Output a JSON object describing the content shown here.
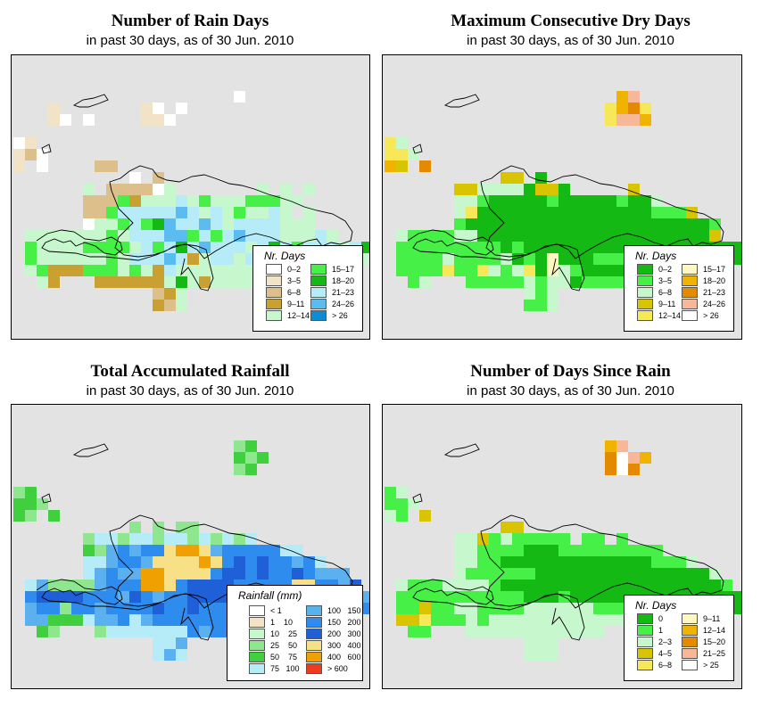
{
  "colors": {
    "map_background": "#e3e3e3",
    "island_outline": "#000000"
  },
  "panels": [
    {
      "id": "rain-days",
      "title": "Number of Rain Days",
      "subtitle": "in past 30 days, as of  30 Jun. 2010",
      "legend": {
        "title": "Nr. Days",
        "items": [
          {
            "label": "0–2",
            "color": "#ffffff"
          },
          {
            "label": "3–5",
            "color": "#f2e3c6"
          },
          {
            "label": "6–8",
            "color": "#ddbf8c"
          },
          {
            "label": "9–11",
            "color": "#c9a032"
          },
          {
            "label": "12–14",
            "color": "#c7f7cc"
          },
          {
            "label": "15–17",
            "color": "#46f046"
          },
          {
            "label": "18–20",
            "color": "#14b914"
          },
          {
            "label": "21–23",
            "color": "#b6ecf7"
          },
          {
            "label": "24–26",
            "color": "#5bbcf0"
          },
          {
            "label": "> 26",
            "color": "#0e8bd3"
          }
        ]
      },
      "grid": [
        "...........................................",
        "...........................................",
        "...................A...........................",
        "...B.......BA.A................................",
        "...BA.A....BBA.................................",
        "...............................................",
        "AB.............................................",
        "BCA............................................",
        "B.A....CC.......................................",
        "..........A.C...................................",
        "......E.CCCCAE.......E.E.E.........",
        "......CCCFDEEEHEFEEEFFFEE...........",
        "......CCFHHHHHIHEHEFEEHE.E........",
        "......AEEFHFGIHHIHEHHHHEEE........",
        ".EEEEEEEFEHHHIIFHFHIHHHEEEHE.....",
        ".FEEEEFFFFEHFHGHIHHHEHGHFHHHEHGEE..",
        ".FEEEEEEFEHHHIHDEHHEHEDHEFGEGHEE...",
        ".EFDDDFFFEFEDHEEEEEEEEEEE.........",
        "..ED...DDDDDDEGEDEEEE..............",
        "............CDE.......................",
        "............DCE.......................",
        "..............................................."
      ]
    },
    {
      "id": "dry-days",
      "title": "Maximum Consecutive Dry Days",
      "subtitle": "in past 30 days, as of  30 Jun. 2010",
      "legend": {
        "title": "Nr. Days",
        "items": [
          {
            "label": "0–2",
            "color": "#14b914"
          },
          {
            "label": "3–5",
            "color": "#46f046"
          },
          {
            "label": "6–8",
            "color": "#c7f7cc"
          },
          {
            "label": "9–11",
            "color": "#d8c400"
          },
          {
            "label": "12–14",
            "color": "#f7e85a"
          },
          {
            "label": "15–17",
            "color": "#fff7c0"
          },
          {
            "label": "18–20",
            "color": "#f0b400"
          },
          {
            "label": "21–23",
            "color": "#e38a00"
          },
          {
            "label": "24–26",
            "color": "#f7b89a"
          },
          {
            "label": "> 26",
            "color": "#ffffff"
          }
        ]
      },
      "grid": [
        "...........................................",
        "...................................................",
        "....................GI.............",
        "...................EGHE.......................",
        "...................EIIG.......................",
        "..........................................",
        "EC..........................................",
        "EEC.......................................",
        "GD.H.......................................",
        "..........DD.A.......................",
        "......DDCCCCADDA.....D.......",
        "......CCBAAAAABAAAAABAAC.............",
        "......CEAAAAAAAAAAAAAAABBBD.........",
        "......BAAAAAAAAAAAAAAAAAAAAAB..........",
        ".CBBBBCCAAAAAAAAAAAAAAAAAAAAD.......",
        ".BBBBBBBBBABAAAAAAAAAAAAAAAAAAAAD..",
        ".BBBBCBBBBCABAFAAABBBABBBAABAAADB...",
        ".BBBBEBBECBCEAFCBAAAABBBBDAB.......",
        "..BC...BBBBBCBCCABBBBB...........",
        "............CBC.....................",
        "............BBC......................",
        "......................................"
      ]
    },
    {
      "id": "rainfall",
      "title": "Total Accumulated Rainfall",
      "subtitle": "in past 30 days, as of  30 Jun. 2010",
      "legend": {
        "title": "Rainfall (mm)",
        "items": [
          {
            "label": "< 1",
            "color": "#ffffff"
          },
          {
            "label": "1    10",
            "color": "#f2e3c6"
          },
          {
            "label": "10    25",
            "color": "#c7f7cc"
          },
          {
            "label": "25    50",
            "color": "#8ee68e"
          },
          {
            "label": "50    75",
            "color": "#3fcf3f"
          },
          {
            "label": "75   100",
            "color": "#b6ecf7"
          },
          {
            "label": "100   150",
            "color": "#5bb0f0"
          },
          {
            "label": "150   200",
            "color": "#2d8cee"
          },
          {
            "label": "200   300",
            "color": "#1f5fd8"
          },
          {
            "label": "300   400",
            "color": "#f7e085"
          },
          {
            "label": "400   600",
            "color": "#f0a000"
          },
          {
            "label": "> 600",
            "color": "#f03a1e"
          }
        ]
      },
      "grid": [
        "...........................................",
        "...................................................",
        "...................DE........................",
        "...................EDE.......................",
        "...................DE........................",
        "..........................................",
        "DE..........................................",
        "EED.......................................",
        "ED.E.......................................",
        "..........D.D.DD......................",
        "......DFFDFFDFFDFDFDF...........",
        "......EDGHGHHJKKJGHHHHHFF...........",
        "......FFGHHGJJJJKJHIHIHHGHF........",
        "......FGHGGKKJJJJHIIHIHHIHGGG......",
        ".FGDDDDGHHHKKJHIIIIHHHHHJJHHGI.....",
        ".HIIIIHHHGIHGHHIIIIIHHHIJKHHIHGHH..",
        ".GHHDHHGHHHHIHHIHHHHHHHIHHHHHHHH...",
        ".GGEEEFGGHFGHHHHHHHHHHGHGH.........",
        "..ED...DFFFFFFFHGHHHF..........",
        "............FFG......................",
        "............FGF.....................",
        "......................................"
      ]
    },
    {
      "id": "since-rain",
      "title": "Number of Days Since Rain",
      "subtitle": "in past 30 days, as of  30 Jun. 2010",
      "legend": {
        "title": "Nr. Days",
        "items": [
          {
            "label": "0",
            "color": "#14b914"
          },
          {
            "label": "1",
            "color": "#46f046"
          },
          {
            "label": "2–3",
            "color": "#c7f7cc"
          },
          {
            "label": "4–5",
            "color": "#d8c400"
          },
          {
            "label": "6–8",
            "color": "#f7e85a"
          },
          {
            "label": "9–11",
            "color": "#fff7c0"
          },
          {
            "label": "12–14",
            "color": "#f0b400"
          },
          {
            "label": "15–20",
            "color": "#e38a00"
          },
          {
            "label": "21–25",
            "color": "#f7b89a"
          },
          {
            "label": "> 25",
            "color": "#ffffff"
          }
        ]
      },
      "grid": [
        "...........................................",
        "...................................................",
        "...................GI.......................",
        "...................HJIG.......................",
        "...................HJH........................",
        "..........................................",
        "BC..........................................",
        "BBC.......................................",
        "CB.D.......................................",
        "..........DD.............................",
        "......CCDBCBBBBB.BB.B........",
        "......CCBBBBAAABBBBBBBBB.............",
        "......CCBBAAAAAAAAAAAAABBBC.........",
        "......CBBBBBBAAAAAAAAAAAAAAAC..........",
        ".CBBBCCCCBAAAAAAAAAAAAAAAAAAAB.......",
        ".BBBBBBBBBBBAAABAAAAAAAAAAAAAAAAAB..",
        ".BBDBBCCBBBBCCCCCCBBBAABBBBABAAAAF...",
        ".DDEBBBCBCCCCCCCCCCCCCCCB........",
        "..BB...CCCCCCCCCCCC...........",
        "............CCC......................",
        "............CCC......................",
        "......................................"
      ]
    }
  ]
}
